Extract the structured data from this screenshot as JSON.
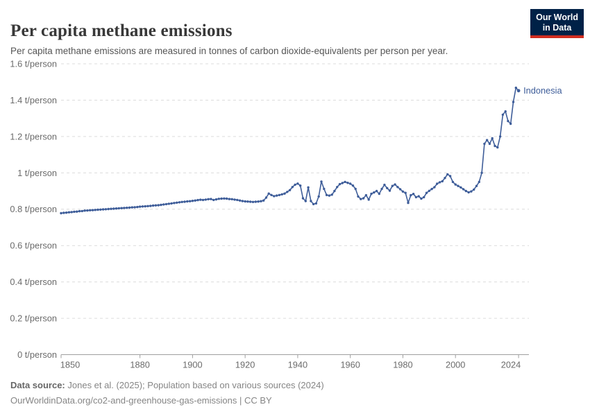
{
  "header": {
    "title": "Per capita methane emissions",
    "subtitle": "Per capita methane emissions are measured in tonnes of carbon dioxide-equivalents per person per year.",
    "logo_line1": "Our World",
    "logo_line2": "in Data"
  },
  "chart_data": {
    "type": "line",
    "title": "Per capita methane emissions",
    "entity_label": "Indonesia",
    "unit_tick_suffix": " t/person",
    "x_start": 1850,
    "x_step": 1,
    "xlim": [
      1850,
      2024
    ],
    "ylim": [
      0,
      1.6
    ],
    "xticks": [
      1850,
      1880,
      1900,
      1920,
      1940,
      1960,
      1980,
      2000,
      2024
    ],
    "yticks": [
      0,
      0.2,
      0.4,
      0.6,
      0.8,
      1,
      1.2,
      1.4,
      1.6
    ],
    "grid": "horizontal-dashed",
    "legend_position": "end-of-line-label",
    "series": [
      {
        "name": "Indonesia",
        "color": "#3e5d99",
        "values": [
          0.778,
          0.78,
          0.781,
          0.783,
          0.784,
          0.786,
          0.787,
          0.789,
          0.79,
          0.792,
          0.793,
          0.794,
          0.795,
          0.796,
          0.797,
          0.798,
          0.799,
          0.8,
          0.801,
          0.802,
          0.803,
          0.804,
          0.805,
          0.806,
          0.807,
          0.808,
          0.809,
          0.81,
          0.811,
          0.812,
          0.814,
          0.815,
          0.816,
          0.817,
          0.818,
          0.82,
          0.821,
          0.822,
          0.824,
          0.826,
          0.828,
          0.83,
          0.832,
          0.834,
          0.836,
          0.838,
          0.84,
          0.841,
          0.843,
          0.844,
          0.846,
          0.848,
          0.85,
          0.852,
          0.851,
          0.853,
          0.855,
          0.856,
          0.851,
          0.854,
          0.857,
          0.858,
          0.859,
          0.858,
          0.856,
          0.855,
          0.853,
          0.851,
          0.848,
          0.845,
          0.843,
          0.842,
          0.841,
          0.84,
          0.841,
          0.842,
          0.844,
          0.848,
          0.864,
          0.886,
          0.878,
          0.872,
          0.875,
          0.878,
          0.882,
          0.886,
          0.895,
          0.905,
          0.922,
          0.935,
          0.941,
          0.93,
          0.86,
          0.845,
          0.92,
          0.845,
          0.828,
          0.832,
          0.87,
          0.952,
          0.912,
          0.878,
          0.875,
          0.88,
          0.9,
          0.922,
          0.938,
          0.944,
          0.95,
          0.945,
          0.94,
          0.93,
          0.912,
          0.87,
          0.856,
          0.86,
          0.877,
          0.853,
          0.885,
          0.892,
          0.9,
          0.885,
          0.912,
          0.934,
          0.916,
          0.902,
          0.928,
          0.936,
          0.922,
          0.91,
          0.897,
          0.89,
          0.835,
          0.877,
          0.884,
          0.866,
          0.871,
          0.858,
          0.866,
          0.89,
          0.901,
          0.911,
          0.921,
          0.94,
          0.948,
          0.954,
          0.972,
          0.992,
          0.982,
          0.95,
          0.936,
          0.928,
          0.92,
          0.91,
          0.9,
          0.893,
          0.898,
          0.908,
          0.928,
          0.95,
          1.0,
          1.16,
          1.18,
          1.16,
          1.19,
          1.148,
          1.14,
          1.2,
          1.32,
          1.338,
          1.285,
          1.27,
          1.39,
          1.468,
          1.452
        ]
      }
    ]
  },
  "footer": {
    "source_label": "Data source:",
    "source_text": "Jones et al. (2025); Population based on various sources (2024)",
    "license_line": "OurWorldinData.org/co2-and-greenhouse-gas-emissions | CC BY"
  },
  "colors": {
    "line": "#3e5d99",
    "grid": "#dcdcdc",
    "axis": "#9e9e9e",
    "tick_label": "#6b6b6b",
    "logo_bg": "#002147",
    "logo_red": "#d12d20"
  }
}
